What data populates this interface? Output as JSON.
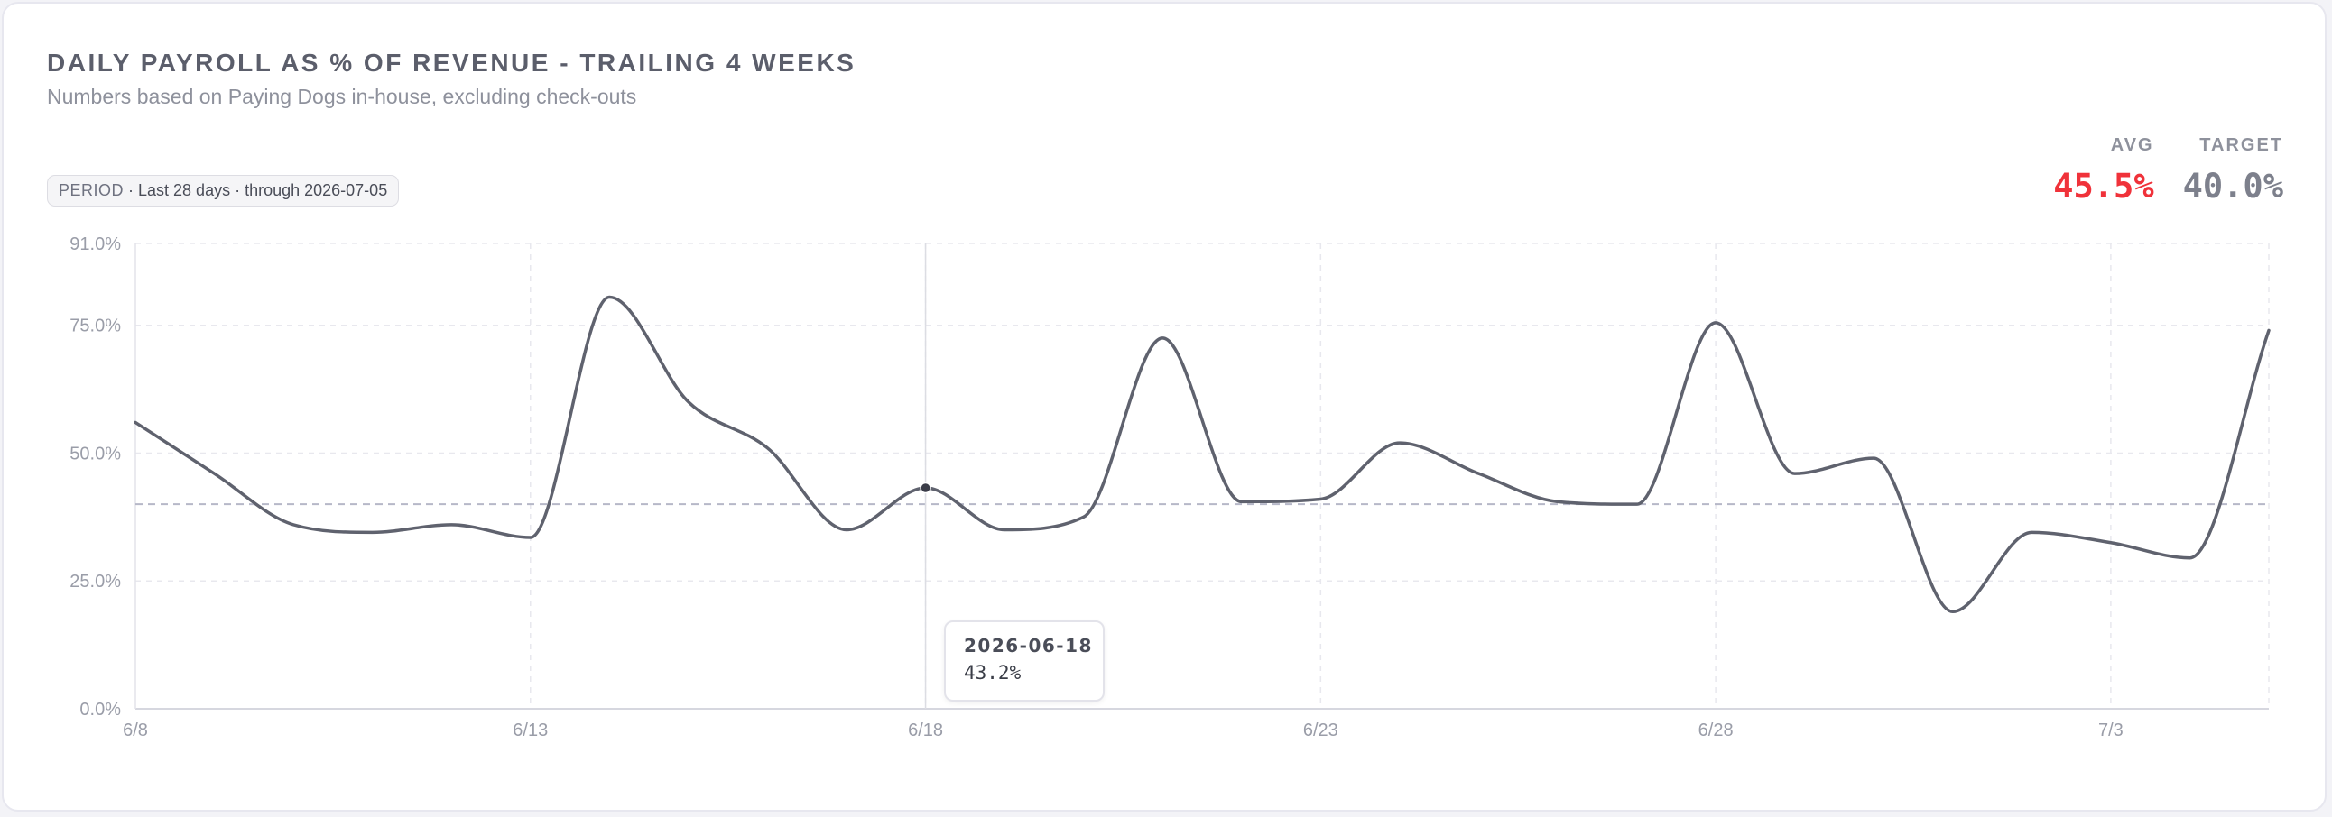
{
  "header": {
    "title": "DAILY PAYROLL AS % OF REVENUE - TRAILING 4 WEEKS",
    "subtitle": "Numbers based on Paying Dogs in-house, excluding check-outs"
  },
  "period": {
    "key": "PERIOD",
    "text": " · Last 28 days · through 2026-07-05"
  },
  "stats": {
    "avg_label": "AVG",
    "avg_value": "45.5%",
    "target_label": "TARGET",
    "target_value": "40.0%"
  },
  "tooltip": {
    "date": "2026-06-18",
    "value": "43.2%"
  },
  "colors": {
    "line": "#5f626e",
    "avg": "#f0323a",
    "target": "#7d808c",
    "grid": "#e8e8ee",
    "target_line": "#b6b8c8"
  },
  "chart_data": {
    "type": "line",
    "x": [
      "2026-06-08",
      "2026-06-09",
      "2026-06-10",
      "2026-06-11",
      "2026-06-12",
      "2026-06-13",
      "2026-06-14",
      "2026-06-15",
      "2026-06-16",
      "2026-06-17",
      "2026-06-18",
      "2026-06-19",
      "2026-06-20",
      "2026-06-21",
      "2026-06-22",
      "2026-06-23",
      "2026-06-24",
      "2026-06-25",
      "2026-06-26",
      "2026-06-27",
      "2026-06-28",
      "2026-06-29",
      "2026-06-30",
      "2026-07-01",
      "2026-07-02",
      "2026-07-03",
      "2026-07-04",
      "2026-07-05"
    ],
    "series": [
      {
        "values": [
          56.0,
          46.0,
          36.0,
          34.5,
          36.0,
          33.5,
          80.5,
          60.0,
          51.0,
          35.0,
          43.2,
          35.0,
          37.5,
          72.5,
          40.5,
          41.0,
          52.0,
          46.0,
          40.5,
          40.0,
          75.5,
          46.0,
          49.0,
          19.0,
          34.5,
          32.5,
          29.5,
          74.0
        ]
      }
    ],
    "xticks": [
      "6/8",
      "6/13",
      "6/18",
      "6/23",
      "6/28",
      "7/3"
    ],
    "yticks": [
      "0.0%",
      "25.0%",
      "50.0%",
      "75.0%",
      "91.0%"
    ],
    "ylim": [
      0,
      91
    ],
    "target": 40.0,
    "highlight_date": "2026-06-18",
    "grid": true,
    "legend": "none",
    "xlabel": "",
    "ylabel": ""
  }
}
